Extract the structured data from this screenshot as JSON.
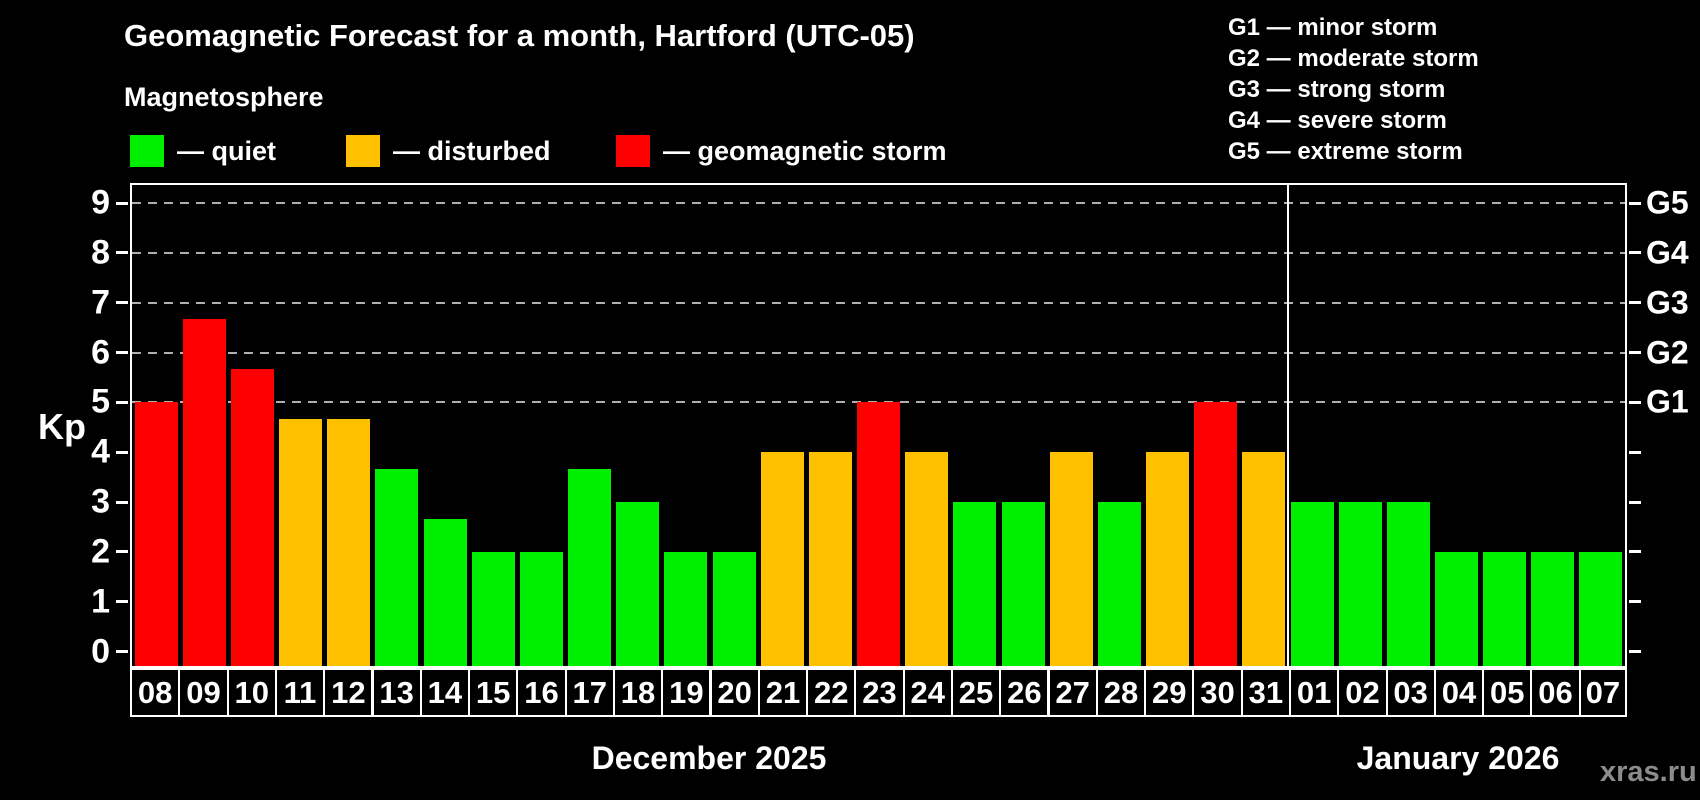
{
  "title": "Geomagnetic Forecast for a month, Hartford (UTC-05)",
  "watermark": "xras.ru",
  "legend": {
    "title": "Magnetosphere",
    "items": [
      {
        "level": "quiet",
        "label": "— quiet"
      },
      {
        "level": "disturbed",
        "label": "— disturbed"
      },
      {
        "level": "storm",
        "label": "— geomagnetic storm"
      }
    ]
  },
  "g_legend": [
    "G1 — minor storm",
    "G2 — moderate storm",
    "G3 — strong storm",
    "G4 — severe storm",
    "G5 — extreme storm"
  ],
  "chart_data": {
    "type": "bar",
    "title": "Geomagnetic Forecast for a month, Hartford (UTC-05)",
    "ylabel": "Kp",
    "ylim": [
      0,
      9
    ],
    "yticks": [
      0,
      1,
      2,
      3,
      4,
      5,
      6,
      7,
      8,
      9
    ],
    "grid_levels": [
      5,
      6,
      7,
      8,
      9
    ],
    "grid_style": "dashed",
    "legend_position": "top",
    "right_axis": [
      {
        "label": "G1",
        "kp": 5
      },
      {
        "label": "G2",
        "kp": 6
      },
      {
        "label": "G3",
        "kp": 7
      },
      {
        "label": "G4",
        "kp": 8
      },
      {
        "label": "G5",
        "kp": 9
      }
    ],
    "colors": {
      "quiet": "#00ef00",
      "disturbed": "#ffc000",
      "storm": "#ff0000"
    },
    "months": [
      {
        "label": "December 2025",
        "days": [
          {
            "date": "08",
            "kp": 5,
            "level": "storm"
          },
          {
            "date": "09",
            "kp": 6.67,
            "level": "storm"
          },
          {
            "date": "10",
            "kp": 5.67,
            "level": "storm"
          },
          {
            "date": "11",
            "kp": 4.67,
            "level": "disturbed"
          },
          {
            "date": "12",
            "kp": 4.67,
            "level": "disturbed"
          },
          {
            "date": "13",
            "kp": 3.67,
            "level": "quiet"
          },
          {
            "date": "14",
            "kp": 2.67,
            "level": "quiet"
          },
          {
            "date": "15",
            "kp": 2,
            "level": "quiet"
          },
          {
            "date": "16",
            "kp": 2,
            "level": "quiet"
          },
          {
            "date": "17",
            "kp": 3.67,
            "level": "quiet"
          },
          {
            "date": "18",
            "kp": 3,
            "level": "quiet"
          },
          {
            "date": "19",
            "kp": 2,
            "level": "quiet"
          },
          {
            "date": "20",
            "kp": 2,
            "level": "quiet"
          },
          {
            "date": "21",
            "kp": 4,
            "level": "disturbed"
          },
          {
            "date": "22",
            "kp": 4,
            "level": "disturbed"
          },
          {
            "date": "23",
            "kp": 5,
            "level": "storm"
          },
          {
            "date": "24",
            "kp": 4,
            "level": "disturbed"
          },
          {
            "date": "25",
            "kp": 3,
            "level": "quiet"
          },
          {
            "date": "26",
            "kp": 3,
            "level": "quiet"
          },
          {
            "date": "27",
            "kp": 4,
            "level": "disturbed"
          },
          {
            "date": "28",
            "kp": 3,
            "level": "quiet"
          },
          {
            "date": "29",
            "kp": 4,
            "level": "disturbed"
          },
          {
            "date": "30",
            "kp": 5,
            "level": "storm"
          },
          {
            "date": "31",
            "kp": 4,
            "level": "disturbed"
          }
        ]
      },
      {
        "label": "January 2026",
        "days": [
          {
            "date": "01",
            "kp": 3,
            "level": "quiet"
          },
          {
            "date": "02",
            "kp": 3,
            "level": "quiet"
          },
          {
            "date": "03",
            "kp": 3,
            "level": "quiet"
          },
          {
            "date": "04",
            "kp": 2,
            "level": "quiet"
          },
          {
            "date": "05",
            "kp": 2,
            "level": "quiet"
          },
          {
            "date": "06",
            "kp": 2,
            "level": "quiet"
          },
          {
            "date": "07",
            "kp": 2,
            "level": "quiet"
          }
        ]
      }
    ]
  }
}
